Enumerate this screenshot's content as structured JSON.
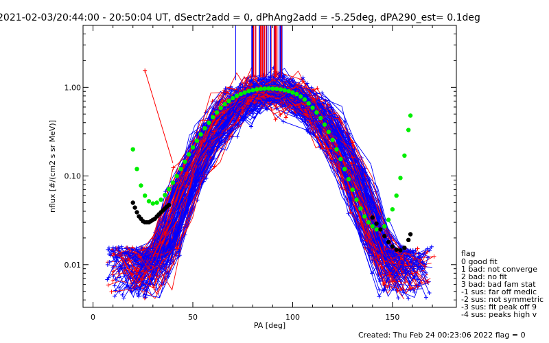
{
  "chart_data": {
    "type": "scatter",
    "title": "2021-02-03/20:44:00 - 20:50:04 UT, dSectr2add = 0, dPhAng2add = -5.25deg, dPA290_est=   0.1deg",
    "xlabel": "PA [deg]",
    "ylabel": "nflux [#/(cm2 s sr MeV)]",
    "xlim": [
      -5,
      182
    ],
    "ylim": [
      0.0033,
      5.0
    ],
    "yscale": "log",
    "xticks": [
      0,
      50,
      100,
      150
    ],
    "xtick_labels": [
      "0",
      "50",
      "100",
      "150"
    ],
    "yticks": [
      0.01,
      0.1,
      1.0
    ],
    "ytick_labels": [
      "0.01",
      "0.10",
      "1.00"
    ],
    "grid": false,
    "series": [
      {
        "color": "#00ee00",
        "marker": "dot",
        "x": [
          20,
          22,
          24,
          26,
          28,
          30,
          32,
          34,
          36,
          38,
          40,
          42,
          44,
          46,
          48,
          50,
          52,
          54,
          56,
          58,
          60,
          62,
          64,
          66,
          68,
          70,
          72,
          74,
          76,
          78,
          80,
          82,
          84,
          86,
          88,
          90,
          92,
          94,
          96,
          98,
          100,
          102,
          104,
          106,
          108,
          110,
          112,
          114,
          116,
          118,
          120,
          122,
          124,
          126,
          128,
          130,
          132,
          134,
          136,
          138,
          140,
          142,
          144,
          146,
          148,
          150,
          152,
          154,
          156,
          158,
          159
        ],
        "y": [
          0.2,
          0.12,
          0.078,
          0.06,
          0.052,
          0.049,
          0.05,
          0.054,
          0.061,
          0.071,
          0.084,
          0.1,
          0.12,
          0.145,
          0.175,
          0.21,
          0.25,
          0.295,
          0.345,
          0.4,
          0.46,
          0.52,
          0.585,
          0.645,
          0.7,
          0.755,
          0.8,
          0.84,
          0.875,
          0.905,
          0.93,
          0.948,
          0.96,
          0.968,
          0.97,
          0.968,
          0.96,
          0.948,
          0.93,
          0.905,
          0.875,
          0.84,
          0.79,
          0.73,
          0.66,
          0.59,
          0.52,
          0.45,
          0.38,
          0.315,
          0.255,
          0.2,
          0.155,
          0.12,
          0.092,
          0.07,
          0.054,
          0.043,
          0.035,
          0.03,
          0.027,
          0.025,
          0.025,
          0.027,
          0.032,
          0.042,
          0.06,
          0.095,
          0.17,
          0.33,
          0.48
        ]
      },
      {
        "color": "#000000",
        "marker": "dot",
        "x": [
          20,
          21,
          22,
          23,
          24,
          25,
          26,
          27,
          28,
          29,
          30,
          31,
          32,
          33,
          34,
          35,
          36,
          37,
          38,
          140,
          142,
          144,
          146,
          148,
          150,
          152,
          154,
          156,
          158,
          159
        ],
        "y": [
          0.05,
          0.044,
          0.039,
          0.035,
          0.033,
          0.031,
          0.03,
          0.03,
          0.03,
          0.031,
          0.032,
          0.033,
          0.035,
          0.037,
          0.039,
          0.041,
          0.043,
          0.045,
          0.047,
          0.034,
          0.029,
          0.025,
          0.021,
          0.018,
          0.016,
          0.0148,
          0.0145,
          0.0155,
          0.019,
          0.022
        ]
      }
    ],
    "legend_title": "flag",
    "legend": [
      " 0 good fit",
      " 1 bad: not converge",
      " 2 bad: no fit",
      " 3 bad: bad fam stat",
      "-1 sus: far off medic",
      "-2 sus: not symmetric",
      "-3 sus: fit peak off 9",
      "-4 sus: peaks high v"
    ],
    "legend_placement": "right",
    "footer": "Created: Thu Feb 24 00:23:06 2022   flag = 0",
    "colors": {
      "trace_a": "#0000ff",
      "trace_b": "#ff0000",
      "fit": "#00ee00",
      "fit_low": "#000000"
    }
  }
}
